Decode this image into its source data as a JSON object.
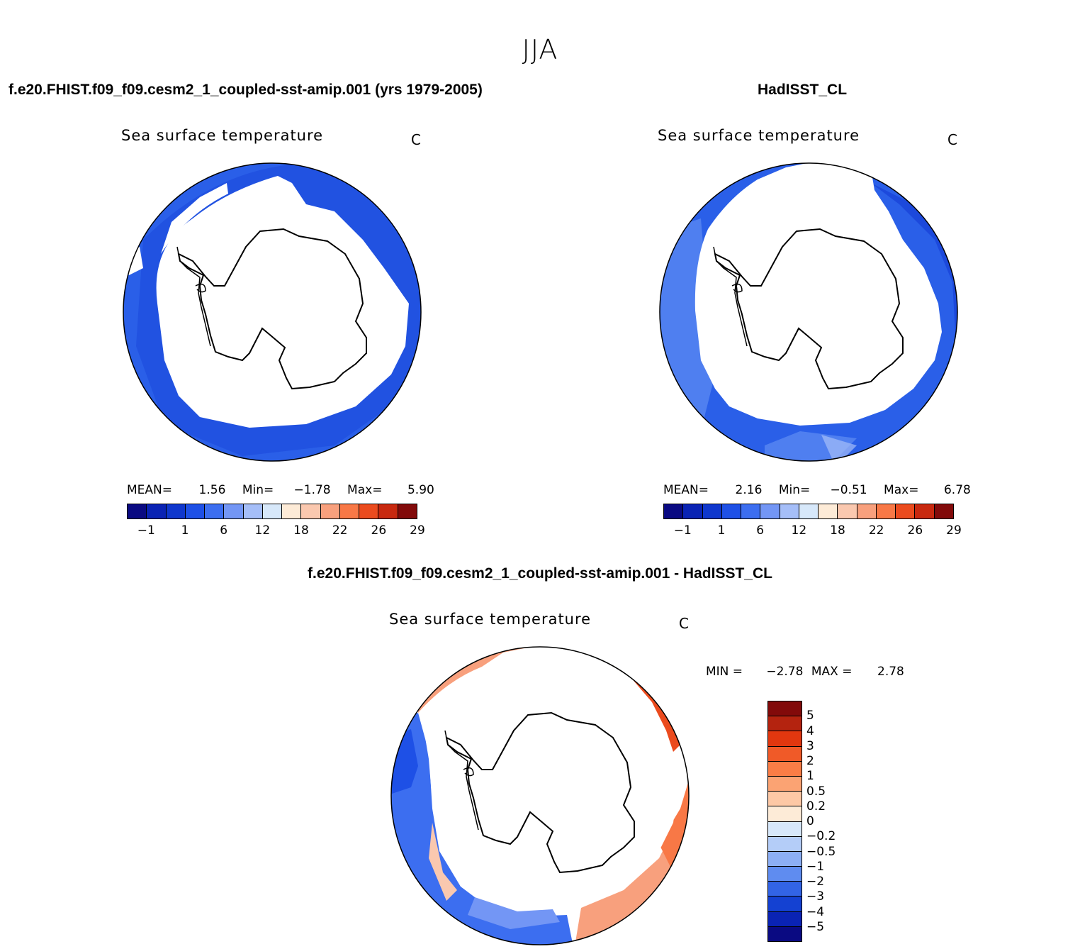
{
  "season": "JJA",
  "panels": {
    "test": {
      "case": "f.e20.FHIST.f09_f09.cesm2_1_coupled-sst-amip.001 (yrs 1979-2005)",
      "variable": "Sea surface temperature",
      "units": "C",
      "stats": {
        "mean_label": "MEAN=",
        "mean": "1.56",
        "min_label": "Min=",
        "min": "−1.78",
        "max_label": "Max=",
        "max": "5.90"
      }
    },
    "ref": {
      "case": "HadISST_CL",
      "variable": "Sea surface temperature",
      "units": "C",
      "stats": {
        "mean_label": "MEAN=",
        "mean": "2.16",
        "min_label": "Min=",
        "min": "−0.51",
        "max_label": "Max=",
        "max": "6.78"
      }
    },
    "diff": {
      "case": "f.e20.FHIST.f09_f09.cesm2_1_coupled-sst-amip.001 - HadISST_CL",
      "variable": "Sea surface temperature",
      "units": "C",
      "stats": {
        "min_label": "MIN =",
        "min": "−2.78",
        "max_label": "MAX =",
        "max": "2.78"
      }
    }
  },
  "colorbar_main": {
    "colors": [
      "#0a0a82",
      "#0a23b4",
      "#0f37cd",
      "#1e50e6",
      "#3c6ef0",
      "#7396f5",
      "#a5bef8",
      "#d7e8fa",
      "#fdebd7",
      "#fac8af",
      "#f8a07d",
      "#f87846",
      "#eb4b1e",
      "#c8280f",
      "#820a0a"
    ],
    "labels": [
      "−1",
      "1",
      "6",
      "12",
      "18",
      "22",
      "26",
      "29"
    ]
  },
  "colorbar_diff": {
    "colors": [
      "#820a0a",
      "#b4230f",
      "#e1370f",
      "#f05a28",
      "#fa7d46",
      "#fba373",
      "#fdc8a5",
      "#fdebd7",
      "#d7e8fa",
      "#b4cdf8",
      "#8caff5",
      "#5f8cf0",
      "#3264e6",
      "#1441d2",
      "#0a23b4",
      "#0a0a82"
    ],
    "labels": [
      "5",
      "4",
      "3",
      "2",
      "1",
      "0.5",
      "0.2",
      "0",
      "−0.2",
      "−0.5",
      "−1",
      "−2",
      "−3",
      "−4",
      "−5"
    ]
  }
}
